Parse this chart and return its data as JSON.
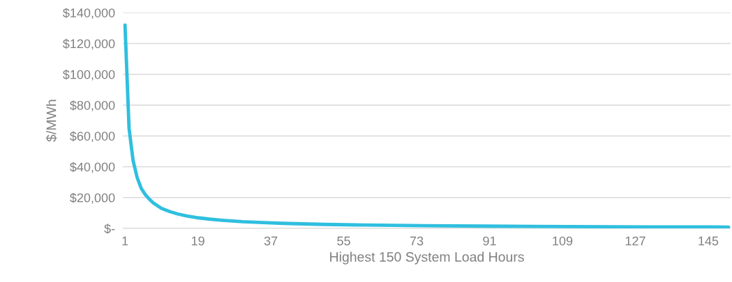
{
  "chart_data": {
    "type": "line",
    "xlabel": "Highest 150 System Load Hours",
    "ylabel": "$/MWh",
    "series": [
      {
        "color": "#2fbfdf",
        "x": [
          1,
          2,
          3,
          4,
          5,
          6,
          7,
          8,
          10,
          12,
          14,
          16,
          19,
          22,
          25,
          30,
          35,
          40,
          50,
          60,
          75,
          90,
          110,
          130,
          150
        ],
        "values": [
          132000,
          65000,
          44000,
          33000,
          26000,
          22000,
          19000,
          16500,
          13000,
          11000,
          9400,
          8200,
          6900,
          6000,
          5300,
          4400,
          3800,
          3300,
          2600,
          2200,
          1800,
          1500,
          1200,
          1000,
          900
        ]
      }
    ],
    "xlim": [
      0.5,
      150.5
    ],
    "xticks": [
      1,
      19,
      37,
      55,
      73,
      91,
      109,
      127,
      145
    ],
    "ylim": [
      0,
      140000
    ],
    "yticks": [
      {
        "value": 0,
        "label": "$-"
      },
      {
        "value": 20000,
        "label": "$20,000"
      },
      {
        "value": 40000,
        "label": "$40,000"
      },
      {
        "value": 60000,
        "label": "$60,000"
      },
      {
        "value": 80000,
        "label": "$80,000"
      },
      {
        "value": 100000,
        "label": "$100,000"
      },
      {
        "value": 120000,
        "label": "$120,000"
      },
      {
        "value": 140000,
        "label": "$140,000"
      }
    ],
    "grid": "y",
    "legend": false,
    "marker": "none",
    "line_style": "solid"
  }
}
